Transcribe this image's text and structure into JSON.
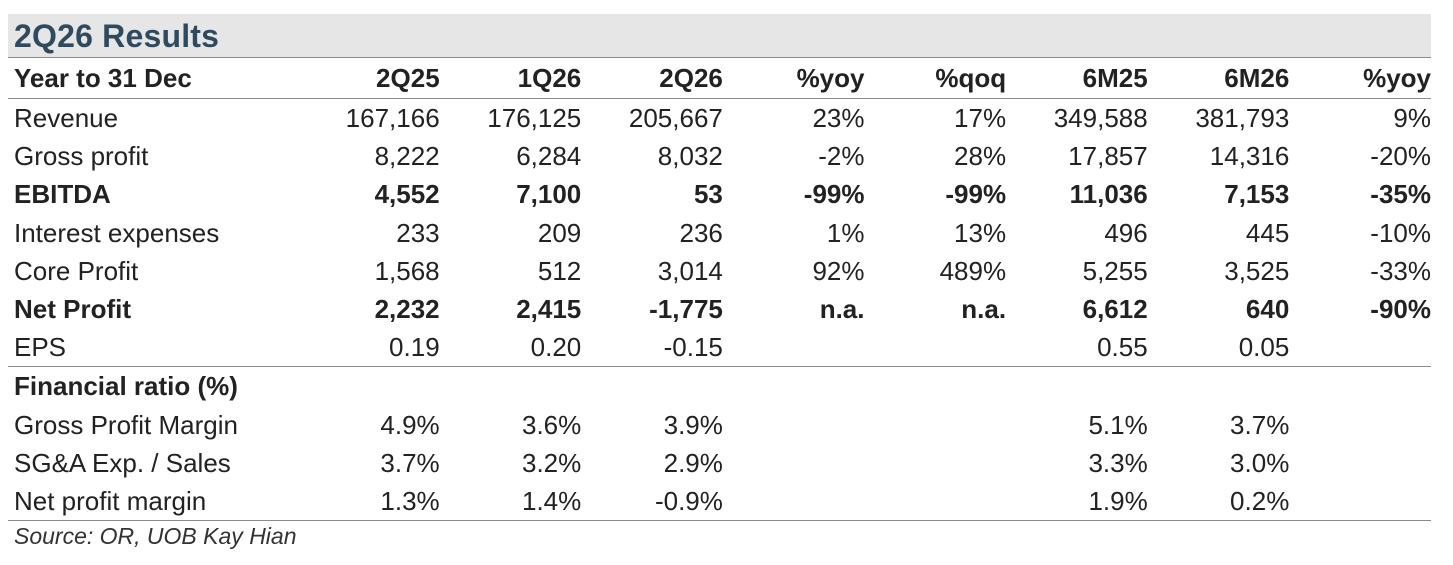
{
  "title": "2Q26 Results",
  "columns": [
    "Year to 31 Dec",
    "2Q25",
    "1Q26",
    "2Q26",
    "%yoy",
    "%qoq",
    "6M25",
    "6M26",
    "%yoy"
  ],
  "rows": [
    {
      "label": "Revenue",
      "bold": false,
      "values": [
        "167,166",
        "176,125",
        "205,667",
        "23%",
        "17%",
        "349,588",
        "381,793",
        "9%"
      ]
    },
    {
      "label": "Gross profit",
      "bold": false,
      "values": [
        "8,222",
        "6,284",
        "8,032",
        "-2%",
        "28%",
        "17,857",
        "14,316",
        "-20%"
      ]
    },
    {
      "label": "EBITDA",
      "bold": true,
      "values": [
        "4,552",
        "7,100",
        "53",
        "-99%",
        "-99%",
        "11,036",
        "7,153",
        "-35%"
      ]
    },
    {
      "label": "Interest expenses",
      "bold": false,
      "values": [
        "233",
        "209",
        "236",
        "1%",
        "13%",
        "496",
        "445",
        "-10%"
      ]
    },
    {
      "label": "Core Profit",
      "bold": false,
      "values": [
        "1,568",
        "512",
        "3,014",
        "92%",
        "489%",
        "5,255",
        "3,525",
        "-33%"
      ]
    },
    {
      "label": "Net Profit",
      "bold": true,
      "values": [
        "2,232",
        "2,415",
        "-1,775",
        "n.a.",
        "n.a.",
        "6,612",
        "640",
        "-90%"
      ]
    },
    {
      "label": "EPS",
      "bold": false,
      "values": [
        "0.19",
        "0.20",
        "-0.15",
        "",
        "",
        "0.55",
        "0.05",
        ""
      ]
    }
  ],
  "ratio_section": {
    "label": "Financial ratio (%)",
    "rows": [
      {
        "label": "Gross Profit Margin",
        "values": [
          "4.9%",
          "3.6%",
          "3.9%",
          "",
          "",
          "5.1%",
          "3.7%",
          ""
        ]
      },
      {
        "label": "SG&A Exp. / Sales",
        "values": [
          "3.7%",
          "3.2%",
          "2.9%",
          "",
          "",
          "3.3%",
          "3.0%",
          ""
        ]
      },
      {
        "label": "Net profit margin",
        "values": [
          "1.3%",
          "1.4%",
          "-0.9%",
          "",
          "",
          "1.9%",
          "0.2%",
          ""
        ]
      }
    ]
  },
  "source": "Source: OR, UOB Kay Hian"
}
